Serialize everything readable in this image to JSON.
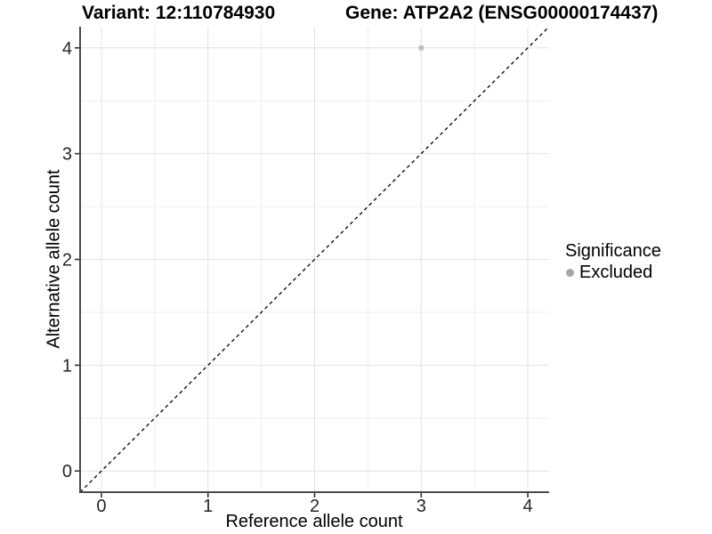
{
  "chart_data": {
    "type": "scatter",
    "title_left": "Variant: 12:110784930",
    "title_right": "Gene: ATP2A2 (ENSG00000174437)",
    "xlabel": "Reference allele count",
    "ylabel": "Alternative allele count",
    "xlim": [
      -0.2,
      4.2
    ],
    "ylim": [
      -0.2,
      4.2
    ],
    "x_ticks": [
      0,
      1,
      2,
      3,
      4
    ],
    "y_ticks": [
      0,
      1,
      2,
      3,
      4
    ],
    "minor_grid_step": 0.5,
    "grid_on": true,
    "colors": {
      "major_grid": "#e2e2e2",
      "minor_grid": "#efefef",
      "axis_line": "#4a4a4a",
      "tick_mark": "#333333",
      "tick_label": "#262626",
      "identity_line": "#000000",
      "point": "#c2c2c2",
      "legend_key": "#a6a6a6"
    },
    "identity_line": {
      "style": "dashed",
      "from": [
        -0.2,
        -0.2
      ],
      "to": [
        4.2,
        4.2
      ]
    },
    "series": [
      {
        "name": "Excluded",
        "points": [
          {
            "x": 3,
            "y": 4
          }
        ]
      }
    ],
    "legend": {
      "title": "Significance",
      "position": "right",
      "entries": [
        {
          "label": "Excluded"
        }
      ]
    }
  }
}
